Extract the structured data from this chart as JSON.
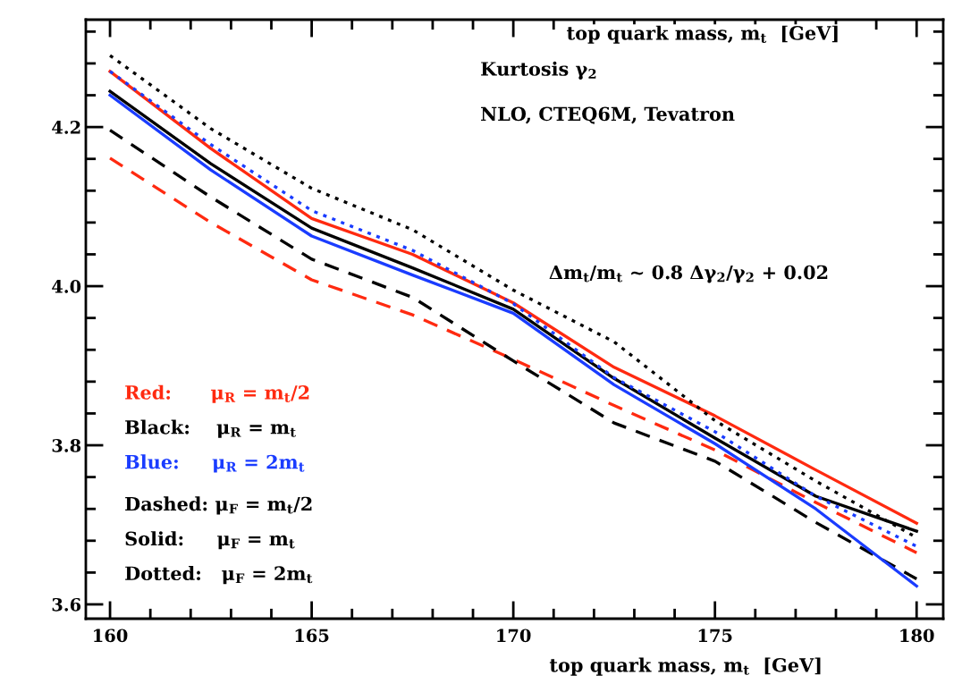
{
  "chart_data": {
    "type": "line",
    "x": [
      160,
      162.5,
      165,
      167.5,
      170,
      172.5,
      175,
      177.5,
      180
    ],
    "xlabel": "top quark mass, m$_{t}$  [GeV]",
    "x2label": "top quark mass, m$_{t}$  [GeV]",
    "xlim": [
      159.4,
      180.66
    ],
    "xticks": [
      160,
      165,
      170,
      175,
      180
    ],
    "ylim": [
      3.582,
      4.335
    ],
    "yticks": [
      {
        "value": 3.6,
        "label": "3.6"
      },
      {
        "value": 3.8,
        "label": "3.8"
      },
      {
        "value": 4.0,
        "label": "4.0"
      },
      {
        "value": 4.2,
        "label": "4.2"
      }
    ],
    "grid": false,
    "legend": false,
    "marker": "none",
    "series": [
      {
        "color": "#ff2a10",
        "line_style": "solid",
        "values": [
          4.27,
          4.173,
          4.085,
          4.04,
          3.979,
          3.898,
          3.837,
          3.769,
          3.702
        ]
      },
      {
        "color": "#ff2a10",
        "line_style": "dashed",
        "values": [
          4.161,
          4.08,
          4.008,
          3.964,
          3.908,
          3.85,
          3.794,
          3.728,
          3.665
        ]
      },
      {
        "color": "#000000",
        "line_style": "solid",
        "values": [
          4.245,
          4.154,
          4.073,
          4.023,
          3.971,
          3.884,
          3.809,
          3.736,
          3.692
        ]
      },
      {
        "color": "#000000",
        "line_style": "dashed",
        "values": [
          4.196,
          4.112,
          4.034,
          3.986,
          3.906,
          3.828,
          3.78,
          3.703,
          3.632
        ]
      },
      {
        "color": "#000000",
        "line_style": "dotted",
        "values": [
          4.29,
          4.198,
          4.123,
          4.071,
          3.995,
          3.93,
          3.831,
          3.755,
          3.684
        ]
      },
      {
        "color": "#1a3cff",
        "line_style": "solid",
        "values": [
          4.24,
          4.146,
          4.063,
          4.014,
          3.966,
          3.876,
          3.802,
          3.72,
          3.623
        ]
      },
      {
        "color": "#1a3cff",
        "line_style": "dotted",
        "values": [
          4.27,
          4.178,
          4.095,
          4.045,
          3.978,
          3.885,
          3.817,
          3.736,
          3.673
        ]
      }
    ],
    "annotations": [
      "Kurtosis γ$_{2}$",
      "NLO, CTEQ6M, Tevatron",
      "Δm$_{t}$/m$_{t}$ ~ 0.8 Δγ$_{2}$/γ$_{2}$ + 0.02",
      "Red:      μ$_{R}$ = m$_{t}$/2",
      "Black:    μ$_{R}$ = m$_{t}$",
      "Blue:     μ$_{R}$ = 2m$_{t}$",
      "Dashed: μ$_{F}$ = m$_{t}$/2",
      "Solid:     μ$_{F}$ = m$_{t}$",
      "Dotted:   μ$_{F}$ = 2m$_{t}$"
    ]
  }
}
